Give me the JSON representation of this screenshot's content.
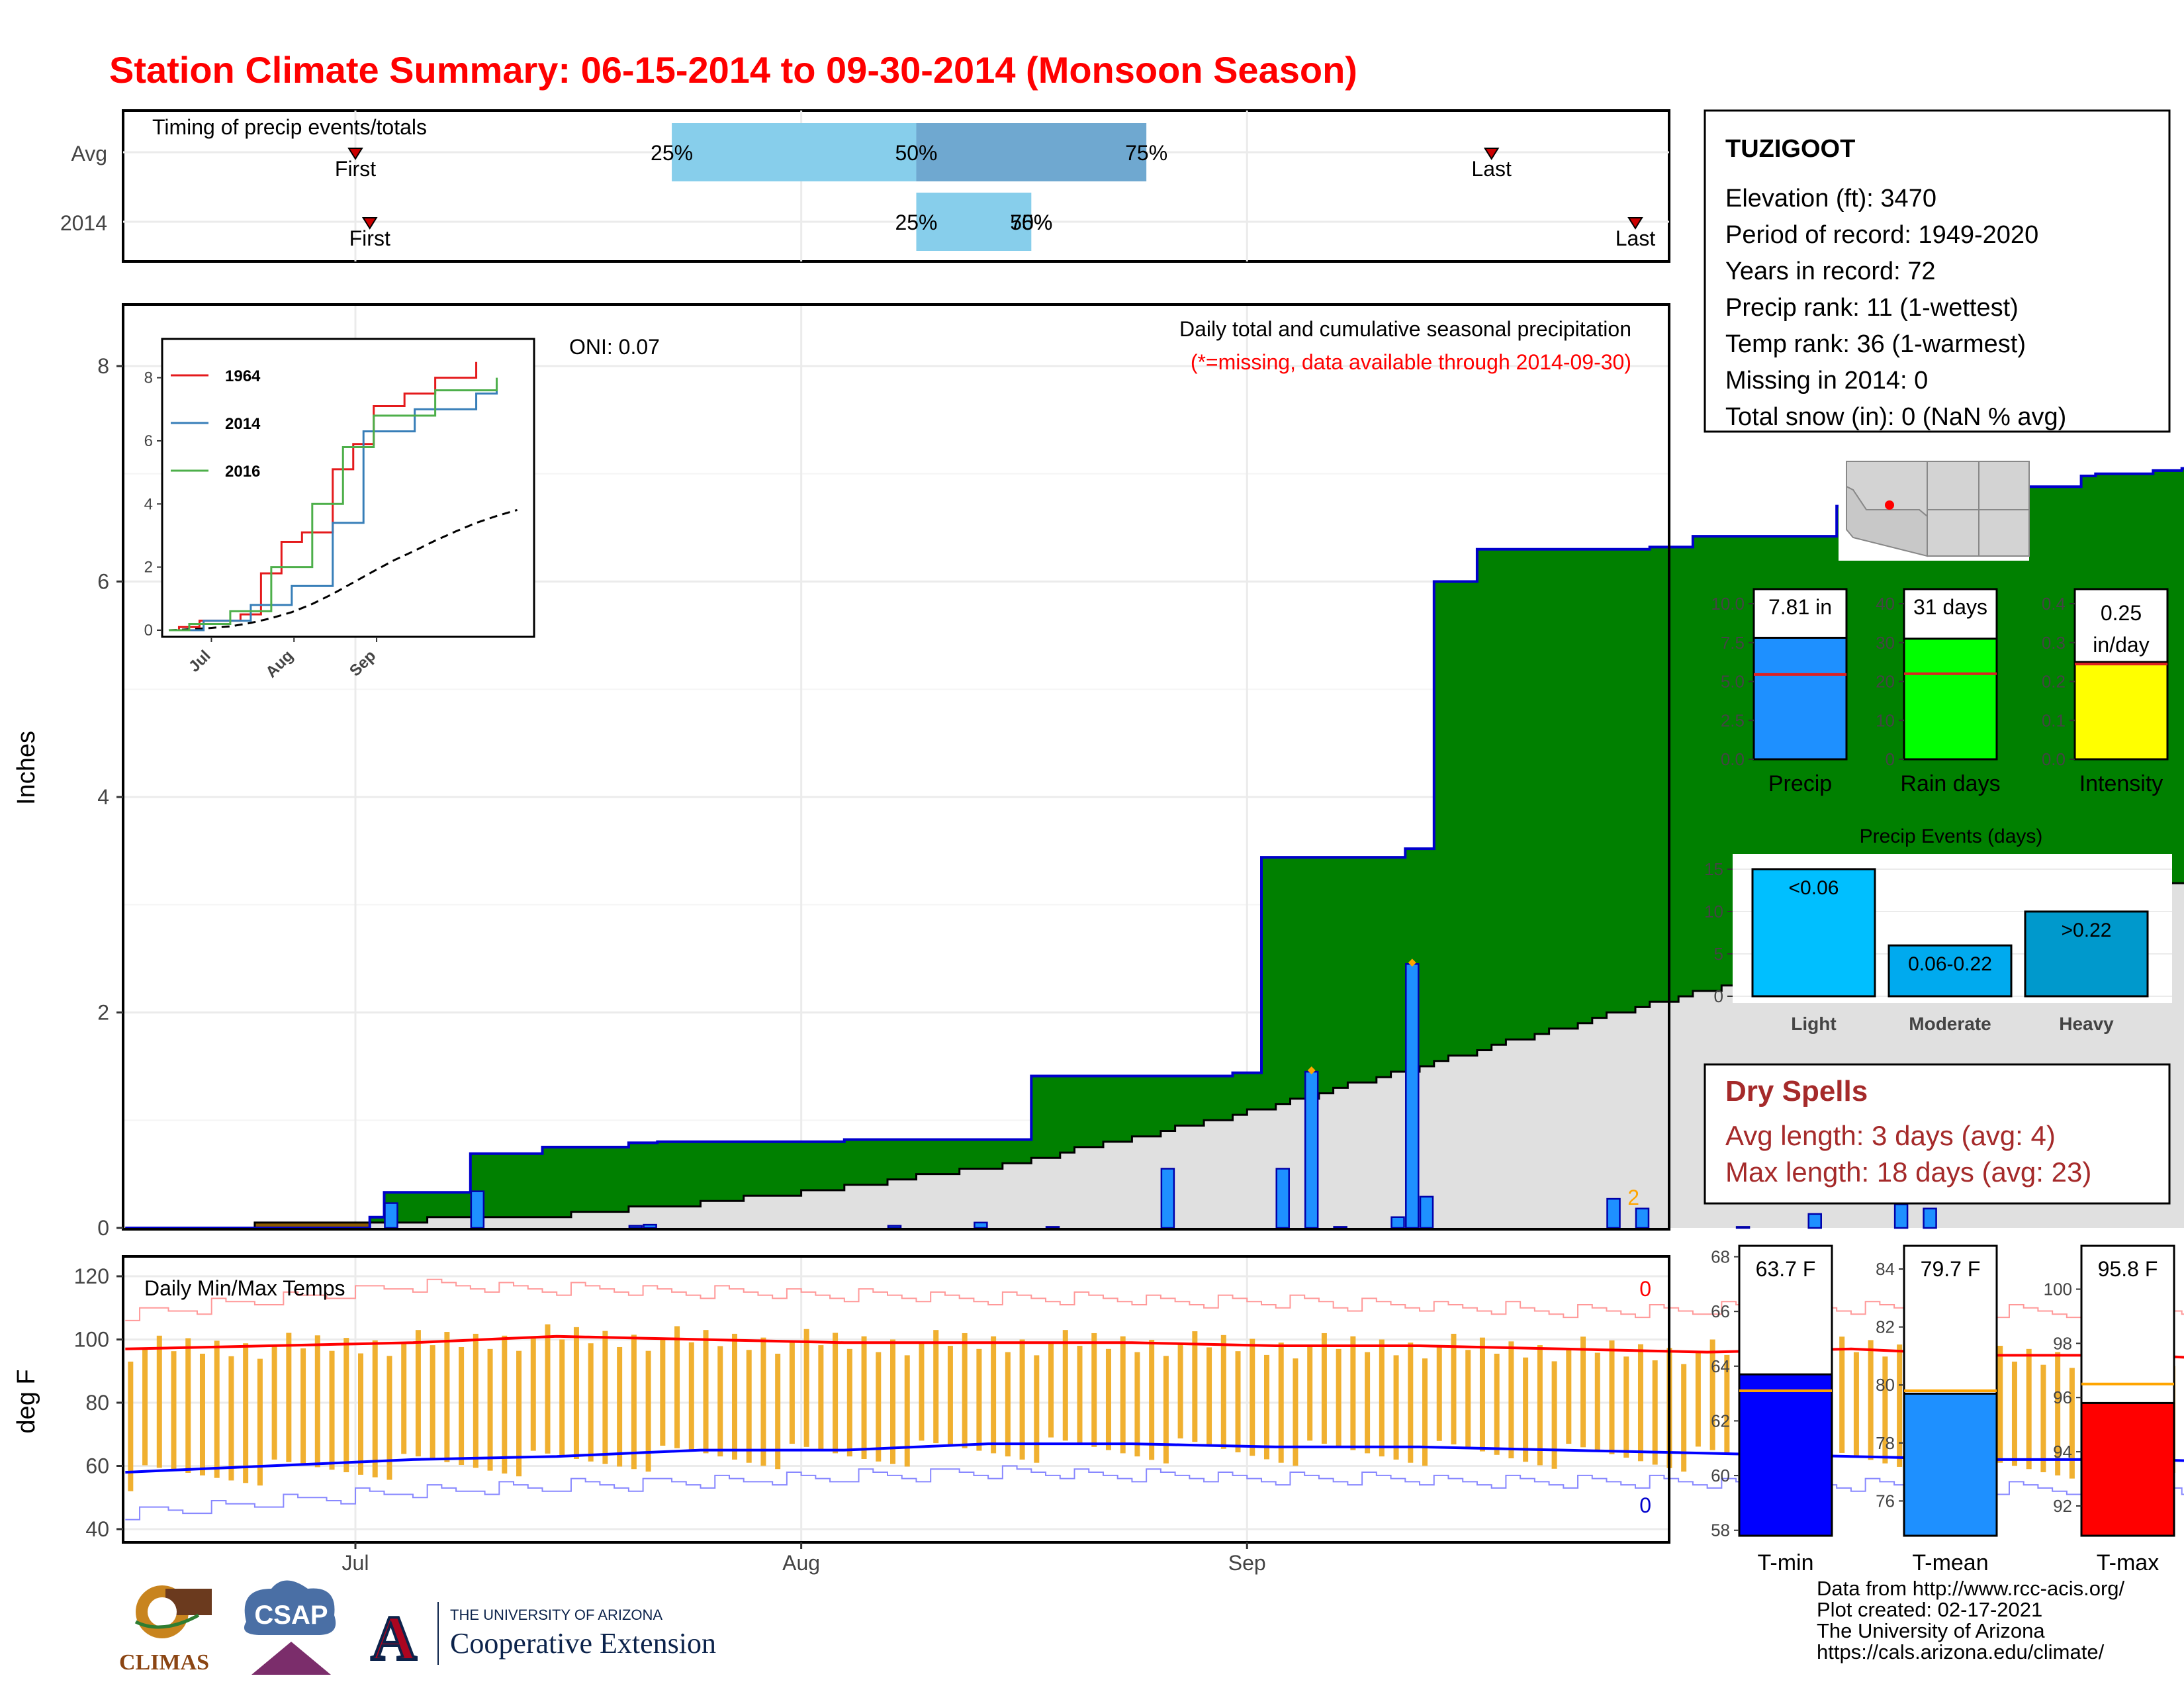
{
  "title": "Station Climate Summary: 06-15-2014 to 09-30-2014 (Monsoon Season)",
  "timing": {
    "label": "Timing of precip events/totals",
    "rows": [
      "Avg",
      "2014"
    ],
    "avg": {
      "first": "First",
      "last": "Last",
      "p25": "25%",
      "p50": "50%",
      "p75": "75%",
      "first_date": "2014-07-01",
      "p25_date": "2014-07-23",
      "p50_date": "2014-08-09",
      "p75_date": "2014-08-25",
      "last_date": "2014-09-18"
    },
    "y2014": {
      "first": "First",
      "last": "Last",
      "p25": "25%",
      "p50": "50%",
      "p75": "75%",
      "first_date": "2014-07-02",
      "p25_date": "2014-08-09",
      "p50_date": "2014-08-17",
      "p75_date": "2014-08-17",
      "last_date": "2014-09-28"
    }
  },
  "station": {
    "name": "TUZIGOOT",
    "lines": [
      "Elevation (ft): 3470",
      "Period of record: 1949-2020",
      "Years in record: 72",
      "Precip rank: 11 (1-wettest)",
      "Temp rank: 36 (1-warmest)",
      "Missing in 2014: 0",
      "Total snow (in): 0 (NaN % avg)"
    ]
  },
  "precip_panel": {
    "ylabel": "Inches",
    "header": "Daily total and cumulative seasonal precipitation",
    "note": "(*=missing, data available through 2014-09-30)",
    "oni": "ONI: 0.07",
    "corner_count": "2",
    "x_ticks": [
      "Jul",
      "Aug",
      "Sep"
    ],
    "y_ticks": [
      "0",
      "2",
      "4",
      "6",
      "8"
    ]
  },
  "inset": {
    "x_ticks": [
      "Jul",
      "Aug",
      "Sep"
    ],
    "y_ticks": [
      "0",
      "2",
      "4",
      "6",
      "8"
    ],
    "legend": [
      {
        "name": "1964",
        "color": "#e41a1c"
      },
      {
        "name": "2014",
        "color": "#377eb8"
      },
      {
        "name": "2016",
        "color": "#4daf4a"
      }
    ]
  },
  "temp_panel": {
    "ylabel": "deg F",
    "label": "Daily Min/Max Temps",
    "count_max": "0",
    "count_min": "0",
    "x_ticks": [
      "Jul",
      "Aug",
      "Sep"
    ],
    "y_ticks": [
      "40",
      "60",
      "80",
      "100",
      "120"
    ]
  },
  "summary_bars": {
    "precip": {
      "label": "Precip",
      "value_text": "7.81 in",
      "value": 7.81,
      "avg": 5.45,
      "ymax": 10,
      "ticks": [
        "0.0",
        "2.5",
        "5.0",
        "7.5",
        "10.0"
      ],
      "color": "#1e90ff"
    },
    "raindays": {
      "label": "Rain days",
      "value_text": "31 days",
      "value": 31,
      "avg": 22,
      "ymax": 40,
      "ticks": [
        "0",
        "10",
        "20",
        "30",
        "40"
      ],
      "color": "#00ff00"
    },
    "intensity": {
      "label": "Intensity",
      "value_text": "0.25",
      "value_text2": "in/day",
      "value": 0.25,
      "avg": 0.245,
      "ymax": 0.4,
      "ticks": [
        "0.0",
        "0.1",
        "0.2",
        "0.3",
        "0.4"
      ],
      "color": "#ffff00"
    }
  },
  "events": {
    "title": "Precip Events (days)",
    "ticks": [
      "0",
      "5",
      "10",
      "15"
    ],
    "bars": [
      {
        "category": "Light",
        "label": "<0.06",
        "value": 15,
        "color": "#00bfff"
      },
      {
        "category": "Moderate",
        "label": "0.06-0.22",
        "value": 6,
        "color": "#00aaee"
      },
      {
        "category": "Heavy",
        "label": ">0.22",
        "value": 10,
        "color": "#0099cc"
      }
    ]
  },
  "dry_spells": {
    "title": "Dry Spells",
    "avg_line": "Avg length: 3 days (avg: 4)",
    "max_line": "Max length: 18 days (avg: 23)"
  },
  "temp_bars": {
    "tmin": {
      "label": "T-min",
      "value_text": "63.7 F",
      "value": 63.7,
      "avg": 63.1,
      "ymin": 57.8,
      "ymax": 68.4,
      "ticks": [
        "58",
        "60",
        "62",
        "64",
        "66",
        "68"
      ],
      "color": "#0000ff"
    },
    "tmean": {
      "label": "T-mean",
      "value_text": "79.7 F",
      "value": 79.7,
      "avg": 79.8,
      "ymin": 74.8,
      "ymax": 84.8,
      "ticks": [
        "76",
        "78",
        "80",
        "82",
        "84"
      ],
      "color": "#1e90ff"
    },
    "tmax": {
      "label": "T-max",
      "value_text": "95.8 F",
      "value": 95.8,
      "avg": 96.5,
      "ymin": 90.9,
      "ymax": 101.6,
      "ticks": [
        "92",
        "94",
        "96",
        "98",
        "100"
      ],
      "color": "#ff0000"
    }
  },
  "footer": [
    "Data from http://www.rcc-acis.org/",
    "Plot created: 02-17-2021",
    "The University of Arizona",
    "https://cals.arizona.edu/climate/"
  ],
  "logos": {
    "climas": "CLIMAS",
    "csap": "CSAP",
    "ua_small": "THE UNIVERSITY OF ARIZONA",
    "ua_big": "Cooperative Extension",
    "ua_letter": "A"
  },
  "colors": {
    "title": "#ff0000",
    "above_avg": "#008000",
    "below_avg": "#8b5a00",
    "avg_fill": "#e0e0e0",
    "obs_line": "#0000cc",
    "daily_bar": "#1e90ff",
    "tmax_line": "#ff0000",
    "tmin_line": "#0000ff",
    "temp_bar": "#f0b030",
    "timing_light": "#87ceeb",
    "timing_dark": "#6fa8d0",
    "dry_title": "#a52a2a"
  },
  "chart_data": {
    "type": "area",
    "start_date": "2014-06-15",
    "end_date": "2014-09-30",
    "cumulative_2014": [
      [
        0,
        0
      ],
      [
        17,
        0.1
      ],
      [
        18,
        0.33
      ],
      [
        24,
        0.69
      ],
      [
        29,
        0.75
      ],
      [
        35,
        0.79
      ],
      [
        37,
        0.8
      ],
      [
        48,
        0.8
      ],
      [
        50,
        0.82
      ],
      [
        54,
        0.82
      ],
      [
        63,
        1.41
      ],
      [
        77,
        1.44
      ],
      [
        79,
        3.44
      ],
      [
        82,
        3.44
      ],
      [
        89,
        3.52
      ],
      [
        91,
        6.0
      ],
      [
        94,
        6.3
      ],
      [
        98,
        6.3
      ],
      [
        106,
        6.32
      ],
      [
        109,
        6.42
      ],
      [
        115,
        6.42
      ],
      [
        118,
        6.42
      ],
      [
        119,
        6.7
      ],
      [
        124,
        6.72
      ],
      [
        126,
        6.72
      ],
      [
        127,
        6.77
      ],
      [
        129,
        6.77
      ],
      [
        132,
        6.88
      ],
      [
        136,
        6.98
      ],
      [
        137,
        7.0
      ],
      [
        141,
        7.03
      ],
      [
        143,
        7.05
      ],
      [
        149,
        7.06
      ],
      [
        153,
        7.08
      ],
      [
        162,
        7.19
      ],
      [
        170,
        7.2
      ],
      [
        176,
        7.37
      ],
      [
        180,
        7.63
      ],
      [
        182,
        7.73
      ],
      [
        185,
        7.73
      ],
      [
        186,
        7.73
      ],
      [
        187,
        7.77
      ],
      [
        190,
        7.77
      ],
      [
        193,
        7.78
      ],
      [
        196,
        7.78
      ],
      [
        197,
        7.81
      ]
    ],
    "cumulative_avg_1964_2020": [
      [
        0,
        0
      ],
      [
        10,
        0.03
      ],
      [
        20,
        0.07
      ],
      [
        30,
        0.12
      ],
      [
        40,
        0.23
      ],
      [
        50,
        0.38
      ],
      [
        60,
        0.57
      ],
      [
        70,
        0.83
      ],
      [
        80,
        1.15
      ],
      [
        90,
        1.51
      ],
      [
        100,
        1.87
      ],
      [
        110,
        2.22
      ],
      [
        120,
        2.52
      ],
      [
        130,
        2.84
      ],
      [
        140,
        3.13
      ],
      [
        150,
        3.4
      ],
      [
        160,
        3.62
      ],
      [
        170,
        3.81
      ],
      [
        180,
        4.01
      ],
      [
        190,
        4.22
      ],
      [
        200,
        4.43
      ],
      [
        210,
        4.64
      ],
      [
        220,
        4.83
      ],
      [
        230,
        5.0
      ],
      [
        240,
        5.15
      ],
      [
        250,
        5.26
      ],
      [
        260,
        5.35
      ],
      [
        270,
        5.45
      ]
    ],
    "daily_precip": [
      [
        18,
        0.23
      ],
      [
        24,
        0.34
      ],
      [
        35,
        0.02
      ],
      [
        36,
        0.03
      ],
      [
        53,
        0.02
      ],
      [
        59,
        0.05
      ],
      [
        64,
        0.01
      ],
      [
        72,
        0.55
      ],
      [
        80,
        0.55
      ],
      [
        82,
        1.45
      ],
      [
        84,
        0.01
      ],
      [
        88,
        0.1
      ],
      [
        89,
        2.45
      ],
      [
        90,
        0.29
      ],
      [
        103,
        0.27
      ],
      [
        105,
        0.18
      ],
      [
        112,
        0.01
      ],
      [
        117,
        0.13
      ],
      [
        123,
        0.22
      ],
      [
        125,
        0.18
      ],
      [
        145,
        0.08
      ],
      [
        154,
        0.25
      ],
      [
        156,
        0.08
      ]
    ],
    "temp_max": [
      [
        0,
        97
      ],
      [
        10,
        98
      ],
      [
        20,
        99
      ],
      [
        30,
        101
      ],
      [
        40,
        100
      ],
      [
        50,
        99
      ],
      [
        60,
        99
      ],
      [
        70,
        99
      ],
      [
        80,
        98
      ],
      [
        90,
        98
      ],
      [
        100,
        97
      ],
      [
        110,
        96
      ],
      [
        120,
        97
      ],
      [
        130,
        95
      ],
      [
        140,
        95
      ],
      [
        150,
        93
      ],
      [
        160,
        92
      ],
      [
        170,
        91
      ],
      [
        180,
        90
      ],
      [
        190,
        90
      ],
      [
        199,
        89
      ]
    ],
    "temp_min": [
      [
        0,
        58
      ],
      [
        10,
        60
      ],
      [
        20,
        62
      ],
      [
        30,
        63
      ],
      [
        40,
        65
      ],
      [
        50,
        65
      ],
      [
        60,
        67
      ],
      [
        70,
        67
      ],
      [
        80,
        66
      ],
      [
        90,
        66
      ],
      [
        100,
        65
      ],
      [
        110,
        64
      ],
      [
        120,
        63
      ],
      [
        130,
        62
      ],
      [
        140,
        62
      ],
      [
        150,
        61
      ],
      [
        160,
        60
      ],
      [
        170,
        58
      ],
      [
        180,
        57
      ],
      [
        190,
        55
      ],
      [
        199,
        53
      ]
    ],
    "record_high": [
      [
        0,
        108
      ],
      [
        20,
        117
      ],
      [
        40,
        115
      ],
      [
        60,
        113
      ],
      [
        80,
        112
      ],
      [
        100,
        109
      ],
      [
        120,
        110
      ],
      [
        140,
        108
      ],
      [
        160,
        106
      ],
      [
        180,
        104
      ],
      [
        199,
        99
      ]
    ],
    "record_low": [
      [
        0,
        45
      ],
      [
        20,
        52
      ],
      [
        40,
        55
      ],
      [
        60,
        58
      ],
      [
        80,
        56
      ],
      [
        100,
        55
      ],
      [
        120,
        54
      ],
      [
        140,
        52
      ],
      [
        160,
        48
      ],
      [
        180,
        45
      ],
      [
        199,
        43
      ]
    ],
    "x_axis_ticks": [
      "Jul",
      "Aug",
      "Sep"
    ],
    "ylabel": "Inches",
    "ylim": [
      0,
      8.5
    ],
    "temp_ylim": [
      38,
      122
    ],
    "inset_series": [
      {
        "name": "1964",
        "points": [
          [
            0,
            0
          ],
          [
            5,
            0.1
          ],
          [
            15,
            0.3
          ],
          [
            35,
            0.5
          ],
          [
            45,
            1.8
          ],
          [
            55,
            2.8
          ],
          [
            65,
            3.1
          ],
          [
            80,
            5.1
          ],
          [
            90,
            5.9
          ],
          [
            100,
            7.1
          ],
          [
            115,
            7.5
          ],
          [
            130,
            8.0
          ],
          [
            150,
            8.5
          ]
        ]
      },
      {
        "name": "2014",
        "points": [
          [
            0,
            0
          ],
          [
            17,
            0.3
          ],
          [
            40,
            0.8
          ],
          [
            60,
            1.4
          ],
          [
            80,
            3.4
          ],
          [
            95,
            6.3
          ],
          [
            120,
            7.0
          ],
          [
            150,
            7.5
          ],
          [
            160,
            7.8
          ]
        ]
      },
      {
        "name": "2016",
        "points": [
          [
            0,
            0
          ],
          [
            10,
            0.2
          ],
          [
            30,
            0.6
          ],
          [
            50,
            2.0
          ],
          [
            70,
            4.0
          ],
          [
            85,
            5.8
          ],
          [
            100,
            6.8
          ],
          [
            130,
            7.6
          ],
          [
            160,
            8.0
          ]
        ]
      }
    ]
  }
}
